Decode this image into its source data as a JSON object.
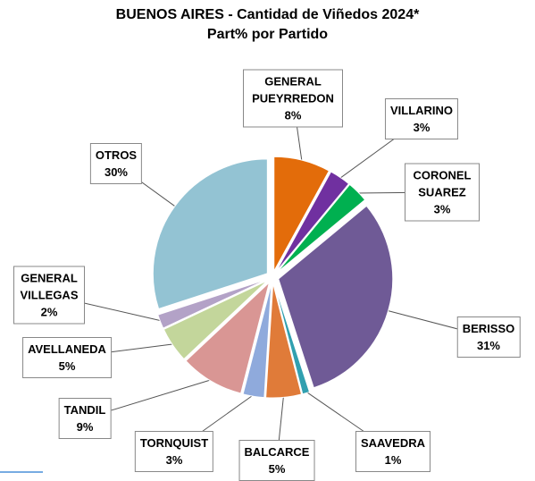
{
  "chart_data": {
    "type": "pie",
    "title": "BUENOS AIRES - Cantidad de Viñedos 2024*",
    "subtitle": "Part% por Partido",
    "categories": [
      "GENERAL PUEYRREDON",
      "VILLARINO",
      "CORONEL SUAREZ",
      "BERISSO",
      "SAAVEDRA",
      "BALCARCE",
      "TORNQUIST",
      "TANDIL",
      "AVELLANEDA",
      "GENERAL VILLEGAS",
      "OTROS"
    ],
    "values": [
      8,
      3,
      3,
      31,
      1,
      5,
      3,
      9,
      5,
      2,
      30
    ],
    "value_labels": [
      "8%",
      "3%",
      "3%",
      "31%",
      "1%",
      "5%",
      "3%",
      "9%",
      "5%",
      "2%",
      "30%"
    ],
    "colors": [
      "#e36c0a",
      "#7030a0",
      "#00b050",
      "#6f5a96",
      "#31a0b0",
      "#e07b39",
      "#8faadc",
      "#d99694",
      "#c3d69b",
      "#b3a2c7",
      "#93c3d3"
    ]
  }
}
